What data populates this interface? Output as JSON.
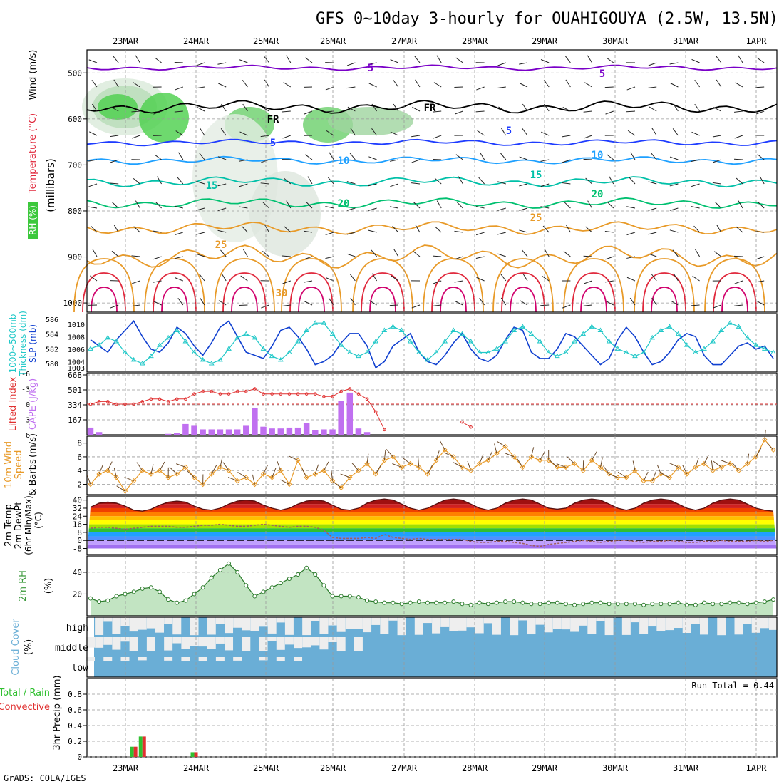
{
  "title": "GFS 0~10day 3-hourly for OUAHIGOUYA (2.5W, 13.5N)",
  "credit": "GrADS: COLA/IGES",
  "dates": [
    "23MAR",
    "24MAR",
    "25MAR",
    "26MAR",
    "27MAR",
    "28MAR",
    "29MAR",
    "30MAR",
    "31MAR",
    "1APR"
  ],
  "colors": {
    "purple": "#7a00c8",
    "blue": "#1e3cff",
    "lightblue": "#1ea0ff",
    "teal": "#00c0a8",
    "green": "#00c070",
    "orange": "#e89a28",
    "red": "#e0283c",
    "magenta": "#d0006c",
    "slp": "#1040d0",
    "thick": "#20c8c8",
    "cape": "#c070f0",
    "li": "#e03030",
    "wind10m": "#e89a28",
    "rh": "#3c9a3c",
    "cloud": "#6aaed6",
    "precip_total": "#30c030",
    "precip_conv": "#e03030"
  },
  "panels": {
    "profile": {
      "ylabel": "(millibars)",
      "label_rh": "RH (%)",
      "label_temp": "Temperature (°C)",
      "label_wind": "Wind (m/s)",
      "yticks": [
        500,
        600,
        700,
        800,
        900,
        1000
      ],
      "contour_labels": [
        "5",
        "5",
        "FR",
        "FR",
        "5",
        "5",
        "10",
        "10",
        "15",
        "15",
        "20",
        "20",
        "25",
        "25",
        "30"
      ]
    },
    "slp": {
      "label_thick": "1000~500mb",
      "label_thick2": "Thickness (dm)",
      "label_slp": "SLP (mb)",
      "thick_ticks": [
        580,
        582,
        584,
        586
      ],
      "slp_ticks": [
        1003,
        1004,
        1006,
        1008,
        1010
      ]
    },
    "cape": {
      "label_li": "Lifted Index",
      "label_cape": "CAPE (J/kg)",
      "li_ticks": [
        -6,
        -3,
        0,
        3,
        6
      ],
      "cape_ticks": [
        167,
        334,
        501,
        668
      ]
    },
    "wind": {
      "label1": "10m Wind",
      "label2": "Speed",
      "label3": "& Barbs",
      "label4": "(m/s)",
      "yticks": [
        2,
        4,
        6,
        8
      ]
    },
    "temp": {
      "label1": "2m Temp",
      "label2": "2m DewPt",
      "label3": "(6hr Min/Max)",
      "label4": "(°C)",
      "yticks": [
        -8,
        0,
        8,
        16,
        24,
        32,
        40
      ]
    },
    "rh2m": {
      "label1": "2m RH",
      "label2": "(%)",
      "yticks": [
        20,
        40
      ]
    },
    "cloud": {
      "label1": "Cloud Cover",
      "label2": "(%)",
      "levels": [
        "high",
        "middle",
        "low"
      ]
    },
    "precip": {
      "label_total": "Total / Rain",
      "label_conv": "Convective",
      "label_y": "3hr Precip (mm)",
      "run_total": "Run Total = 0.44",
      "yticks": [
        "0",
        "0.2",
        "0.4",
        "0.6",
        "0.8"
      ]
    }
  },
  "chart_data": [
    {
      "type": "line",
      "title": "Sea level pressure and 1000-500mb thickness",
      "series": [
        {
          "name": "SLP (mb)",
          "values": [
            1007.5,
            1006.5,
            1005.5,
            1007.5,
            1009,
            1010.5,
            1008,
            1006,
            1005.5,
            1007,
            1009.5,
            1008.5,
            1006.5,
            1005,
            1007,
            1009.5,
            1010.5,
            1008,
            1005.5,
            1005,
            1004.5,
            1006.5,
            1009,
            1009.5,
            1008,
            1006,
            1003.5,
            1004,
            1005,
            1007,
            1008.5,
            1008.5,
            1006.5,
            1003,
            1004,
            1006.5,
            1007.5,
            1008.5,
            1005.5,
            1004,
            1003.5,
            1005,
            1007,
            1008.5,
            1006,
            1004.5,
            1004,
            1005,
            1007.5,
            1009.5,
            1009,
            1005.5,
            1004.5,
            1004.5,
            1006,
            1008.5,
            1008,
            1006.5,
            1005,
            1003.5,
            1004.5,
            1007.5,
            1009.5,
            1008,
            1005.5,
            1003.5,
            1004,
            1005.5,
            1007.5,
            1008.5,
            1008,
            1005,
            1003.5,
            1003.5,
            1005,
            1006.5,
            1007,
            1006,
            1006.5,
            1004.5
          ]
        },
        {
          "name": "1000~500mb Thickness (dm)",
          "values": [
            582,
            582.5,
            583.5,
            583,
            581.5,
            580.5,
            580,
            581,
            582.5,
            583.5,
            584.5,
            583,
            581.5,
            580.5,
            580,
            580.5,
            582,
            583.5,
            584,
            583.5,
            582,
            581,
            580.5,
            581.5,
            583,
            584.5,
            585.5,
            585.5,
            584,
            582.5,
            581.5,
            581,
            581.5,
            583,
            584.5,
            585,
            584.5,
            583,
            581.5,
            580.5,
            581.5,
            583,
            584.5,
            584,
            583,
            581.5,
            581.5,
            582,
            583,
            584.5,
            585,
            584,
            583,
            581.5,
            581,
            581.5,
            583,
            584,
            585,
            584.5,
            583,
            582,
            581.5,
            581,
            581.5,
            583.5,
            584.5,
            585,
            584,
            582.5,
            581.5,
            582,
            583,
            584.5,
            585.5,
            585,
            583.5,
            582.5,
            582,
            581.5
          ]
        }
      ]
    },
    {
      "type": "bar",
      "title": "CAPE and Lifted Index",
      "series": [
        {
          "name": "CAPE (J/kg)",
          "values": [
            80,
            30,
            0,
            0,
            0,
            0,
            0,
            0,
            0,
            10,
            20,
            120,
            100,
            60,
            60,
            60,
            60,
            60,
            100,
            300,
            90,
            70,
            70,
            80,
            80,
            130,
            50,
            60,
            60,
            380,
            470,
            70,
            30,
            0,
            0,
            0,
            0,
            0,
            0,
            0,
            0,
            0,
            0,
            0,
            0,
            0,
            0,
            0,
            0,
            0,
            0,
            0,
            0,
            0,
            0,
            0,
            0,
            0,
            0,
            0,
            0,
            0,
            0,
            0,
            0,
            0,
            0,
            0,
            0,
            0,
            0,
            0,
            0,
            0,
            0,
            0,
            0,
            0,
            0,
            0
          ]
        },
        {
          "name": "Lifted Index",
          "values": [
            0,
            -0.5,
            -0.5,
            0,
            0,
            0,
            -0.5,
            -1,
            -1,
            -0.5,
            -1,
            -1,
            -2,
            -2.5,
            -2.5,
            -2,
            -2,
            -2.5,
            -2.5,
            -3,
            -2,
            -2,
            -2,
            -2,
            -2,
            -2,
            -2,
            -1.5,
            -1.5,
            -2.5,
            -3,
            -2,
            -1,
            1.5,
            5,
            null,
            null,
            null,
            null,
            null,
            null,
            null,
            null,
            3.5,
            4.5,
            null,
            null,
            null,
            null,
            null,
            null,
            null,
            null,
            null,
            null,
            null,
            null,
            null,
            null,
            null,
            null,
            null,
            null,
            null,
            null,
            null,
            null,
            null,
            null,
            null,
            null,
            null,
            null,
            null,
            null,
            null,
            null,
            null,
            null,
            null
          ]
        }
      ]
    },
    {
      "type": "line",
      "title": "10m Wind Speed",
      "series": [
        {
          "name": "10m Wind Speed (m/s)",
          "values": [
            2,
            3.5,
            4,
            3,
            1,
            2.5,
            4,
            3.5,
            4,
            3,
            3.5,
            4.5,
            3,
            2,
            3.5,
            4.5,
            4,
            2.5,
            3,
            2,
            3.5,
            3,
            4,
            2,
            5.5,
            3,
            3.5,
            4,
            2.5,
            1.5,
            3,
            4,
            5,
            3.5,
            5.5,
            6,
            4.5,
            5,
            4.5,
            3.5,
            5.5,
            7,
            6,
            4.5,
            4,
            5,
            5.5,
            6.5,
            7.5,
            6,
            4.5,
            6,
            5.5,
            5.5,
            4.5,
            4.5,
            5,
            4,
            5.5,
            4.5,
            3.5,
            3,
            3,
            4,
            2.5,
            2.5,
            3.5,
            3,
            4.5,
            3.5,
            4.5,
            5,
            4,
            4.5,
            5,
            4,
            5,
            6,
            8.5,
            7
          ]
        }
      ]
    },
    {
      "type": "line",
      "title": "2m Temperature and Dewpoint",
      "series": [
        {
          "name": "2m Temp (°C)",
          "values": [
            33,
            37,
            38,
            37,
            34,
            30,
            29,
            31,
            35,
            38,
            39,
            38,
            34,
            31,
            30,
            32,
            36,
            39,
            40,
            39,
            35,
            32,
            30,
            32,
            36,
            39,
            40,
            39,
            35,
            31,
            30,
            32,
            37,
            40,
            41,
            40,
            36,
            32,
            30,
            32,
            36,
            40,
            41,
            40,
            36,
            32,
            30,
            32,
            37,
            40,
            41,
            40,
            36,
            32,
            31,
            32,
            37,
            40,
            41,
            40,
            36,
            32,
            30,
            32,
            37,
            40,
            41,
            40,
            36,
            32,
            30,
            32,
            37,
            40,
            41,
            40,
            36,
            32,
            30,
            29
          ]
        },
        {
          "name": "2m DewPt (°C)",
          "values": [
            12,
            13,
            13,
            12,
            11,
            12,
            13,
            14,
            14,
            14,
            13,
            13,
            14,
            15,
            15,
            16,
            15,
            14,
            14,
            15,
            16,
            15,
            14,
            13,
            14,
            14,
            13,
            10,
            3,
            2,
            2,
            2,
            3,
            2,
            6,
            3,
            2,
            1,
            2,
            1,
            1,
            1,
            1,
            1,
            -1,
            -2,
            -2,
            -1,
            -1,
            -2,
            -3,
            -5,
            -6,
            -4,
            -3,
            -2,
            -1,
            0,
            -1,
            -2,
            -1,
            0,
            0,
            -1,
            -2,
            -1,
            -1,
            0,
            -1,
            -2,
            -2,
            -1,
            -1,
            0,
            -1,
            -1,
            -1,
            0,
            -1,
            0
          ]
        }
      ]
    },
    {
      "type": "line",
      "title": "2m Relative Humidity",
      "series": [
        {
          "name": "2m RH (%)",
          "values": [
            16,
            13,
            14,
            18,
            20,
            22,
            25,
            26,
            22,
            15,
            12,
            14,
            20,
            26,
            35,
            42,
            48,
            40,
            28,
            18,
            22,
            26,
            30,
            34,
            38,
            44,
            38,
            28,
            18,
            18,
            18,
            17,
            14,
            13,
            12,
            12,
            11,
            12,
            13,
            12,
            12,
            12,
            13,
            11,
            10,
            12,
            11,
            12,
            13,
            13,
            12,
            11,
            11,
            12,
            12,
            11,
            10,
            11,
            12,
            12,
            11,
            11,
            11,
            11,
            10,
            11,
            11,
            11,
            12,
            10,
            10,
            12,
            11,
            11,
            12,
            12,
            11,
            12,
            13,
            15
          ]
        }
      ]
    },
    {
      "type": "bar",
      "title": "3hr Precip",
      "series": [
        {
          "name": "Total / Rain (mm)",
          "values": [
            0,
            0,
            0,
            0,
            0,
            0.13,
            0.26,
            0,
            0,
            0,
            0,
            0,
            0.06,
            0,
            0,
            0,
            0,
            0,
            0,
            0,
            0,
            0,
            0,
            0,
            0,
            0,
            0,
            0,
            0,
            0,
            0,
            0,
            0,
            0,
            0,
            0,
            0,
            0,
            0,
            0,
            0,
            0,
            0,
            0,
            0,
            0,
            0,
            0,
            0,
            0,
            0,
            0,
            0,
            0,
            0,
            0,
            0,
            0,
            0,
            0,
            0,
            0,
            0,
            0,
            0,
            0,
            0,
            0,
            0,
            0,
            0,
            0,
            0,
            0,
            0,
            0,
            0,
            0,
            0,
            0
          ]
        },
        {
          "name": "Convective (mm)",
          "values": [
            0,
            0,
            0,
            0,
            0,
            0.13,
            0.26,
            0,
            0,
            0,
            0,
            0,
            0.06,
            0,
            0,
            0,
            0,
            0,
            0,
            0,
            0,
            0,
            0,
            0,
            0,
            0,
            0,
            0,
            0,
            0,
            0,
            0,
            0,
            0,
            0,
            0,
            0,
            0,
            0,
            0,
            0,
            0,
            0,
            0,
            0,
            0,
            0,
            0,
            0,
            0,
            0,
            0,
            0,
            0,
            0,
            0,
            0,
            0,
            0,
            0,
            0,
            0,
            0,
            0,
            0,
            0,
            0,
            0,
            0,
            0,
            0,
            0,
            0,
            0,
            0,
            0,
            0,
            0,
            0,
            0
          ]
        }
      ]
    }
  ]
}
